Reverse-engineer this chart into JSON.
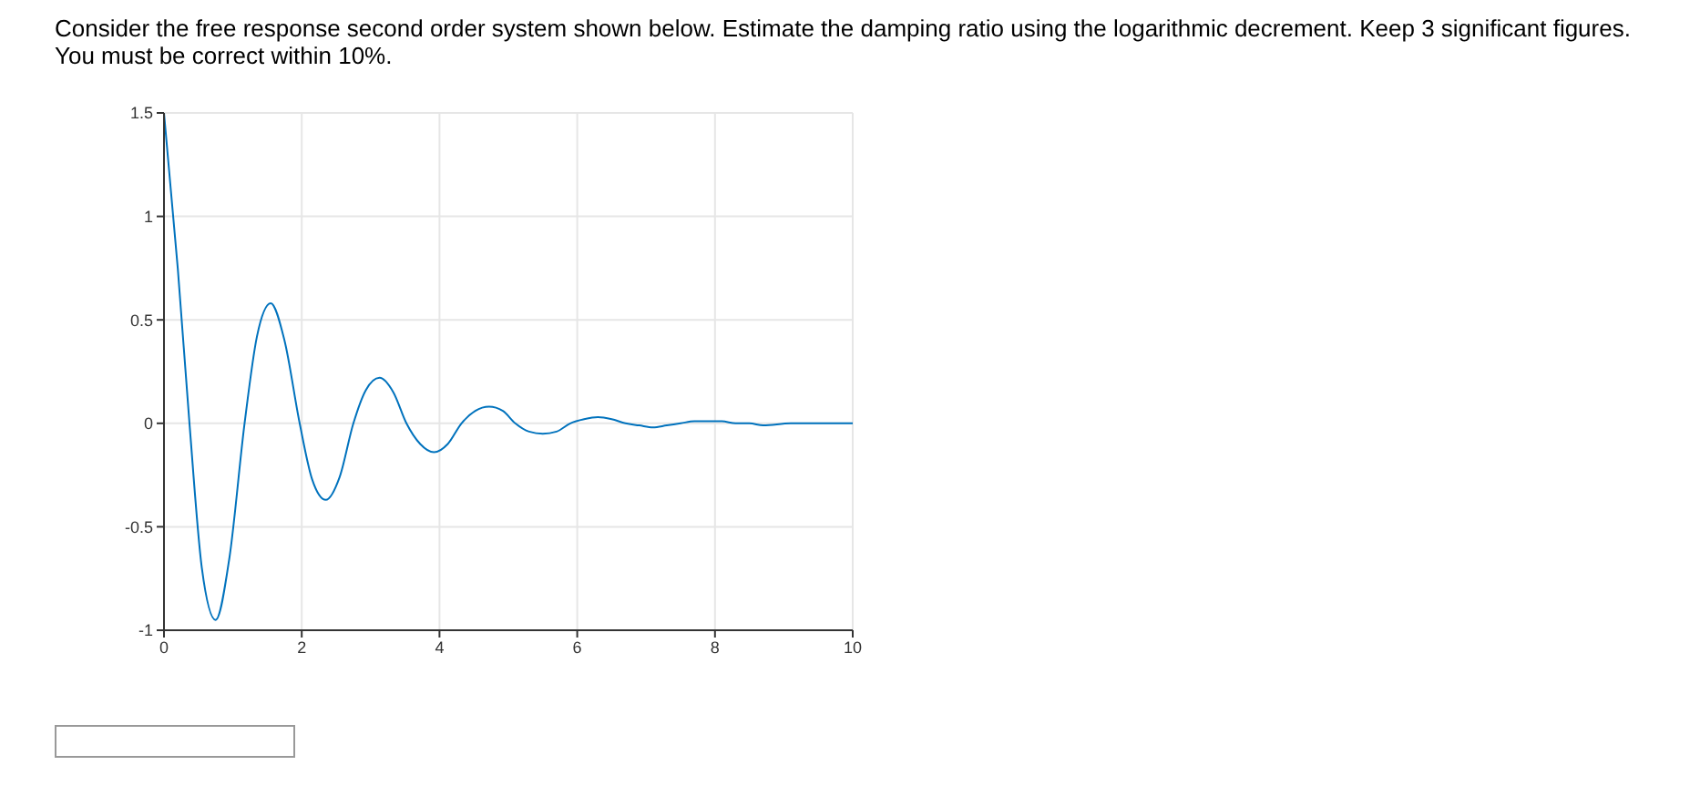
{
  "chart_data": {
    "type": "line",
    "title": "Consider the free response second order system shown below. Estimate the damping ratio using the logarithmic decrement. Keep 3 significant figures. You must be correct within 10%.",
    "x": [
      0,
      0.2,
      0.37,
      0.55,
      0.75,
      0.95,
      1.17,
      1.35,
      1.55,
      1.75,
      1.97,
      2.15,
      2.35,
      2.55,
      2.75,
      2.93,
      3.13,
      3.33,
      3.52,
      3.72,
      3.92,
      4.12,
      4.32,
      4.52,
      4.72,
      4.92,
      5.1,
      5.3,
      5.5,
      5.7,
      5.9,
      6.1,
      6.3,
      6.5,
      6.7,
      6.9,
      7.1,
      7.3,
      7.5,
      7.7,
      7.9,
      8.1,
      8.3,
      8.5,
      8.7,
      9.1,
      9.5,
      10
    ],
    "series": [
      {
        "color": "#0072bd",
        "values": [
          1.5,
          0.75,
          0,
          -0.7,
          -0.95,
          -0.65,
          0,
          0.42,
          0.58,
          0.4,
          0,
          -0.27,
          -0.37,
          -0.26,
          0,
          0.16,
          0.22,
          0.15,
          0,
          -0.1,
          -0.14,
          -0.1,
          0,
          0.06,
          0.08,
          0.06,
          0,
          -0.04,
          -0.05,
          -0.04,
          0,
          0.02,
          0.03,
          0.02,
          0,
          -0.01,
          -0.02,
          -0.01,
          0,
          0.01,
          0.01,
          0.01,
          0,
          0,
          -0.01,
          0,
          0,
          0
        ]
      }
    ],
    "xlim": [
      0,
      10
    ],
    "xticks": [
      0,
      2,
      4,
      6,
      8,
      10
    ],
    "ylim": [
      -1,
      1.5
    ],
    "yticks": [
      -1,
      -0.5,
      0,
      0.5,
      1,
      1.5
    ],
    "grid": true,
    "marker": "none",
    "line_style": "solid"
  }
}
